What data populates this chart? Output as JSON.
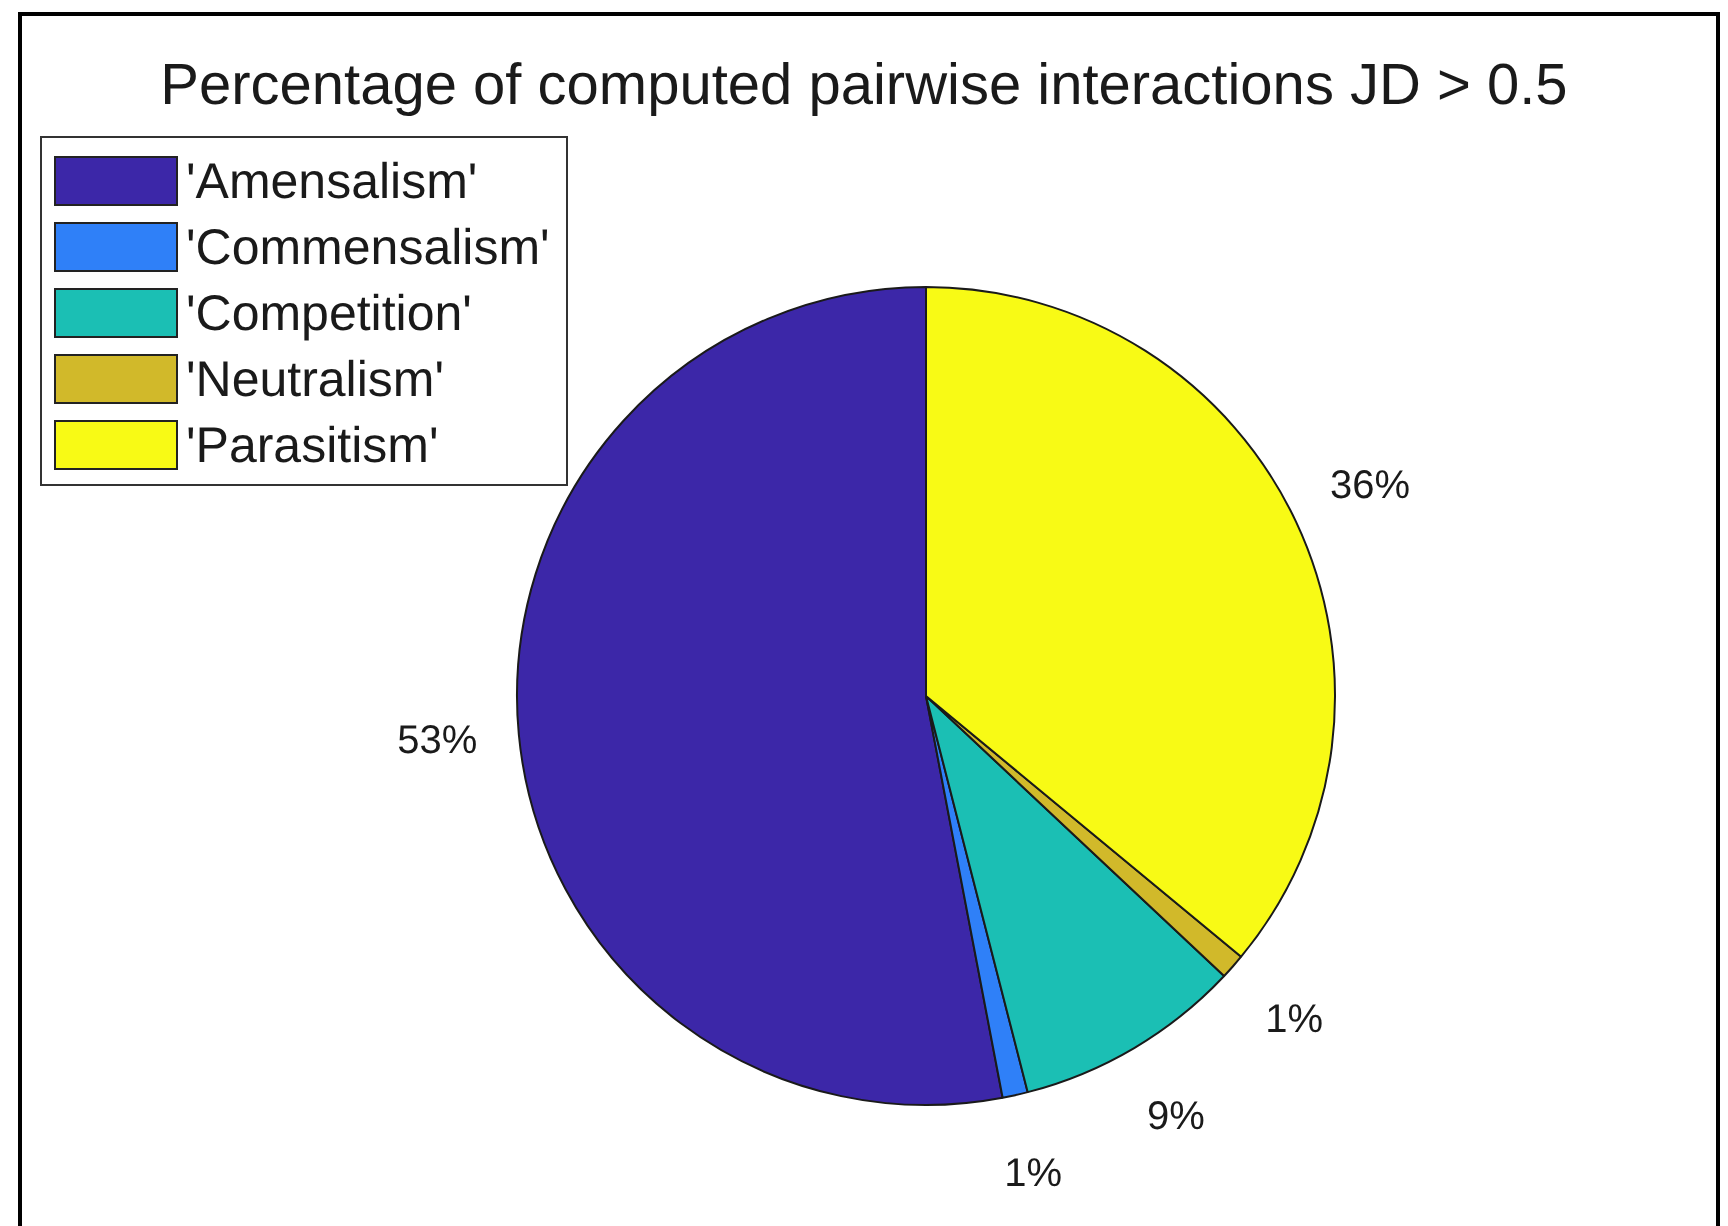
{
  "chart_data": {
    "type": "pie",
    "title": "Percentage of computed pairwise interactions JD > 0.5",
    "categories": [
      "'Amensalism'",
      "'Commensalism'",
      "'Competition'",
      "'Neutralism'",
      "'Parasitism'"
    ],
    "values": [
      53,
      1,
      9,
      1,
      36
    ],
    "colors": [
      "#3c27a8",
      "#2f80f8",
      "#1bbfb4",
      "#d1b92a",
      "#f8fa15"
    ],
    "value_labels": [
      "53%",
      "1%",
      "9%",
      "1%",
      "36%"
    ],
    "legend": "top left"
  }
}
